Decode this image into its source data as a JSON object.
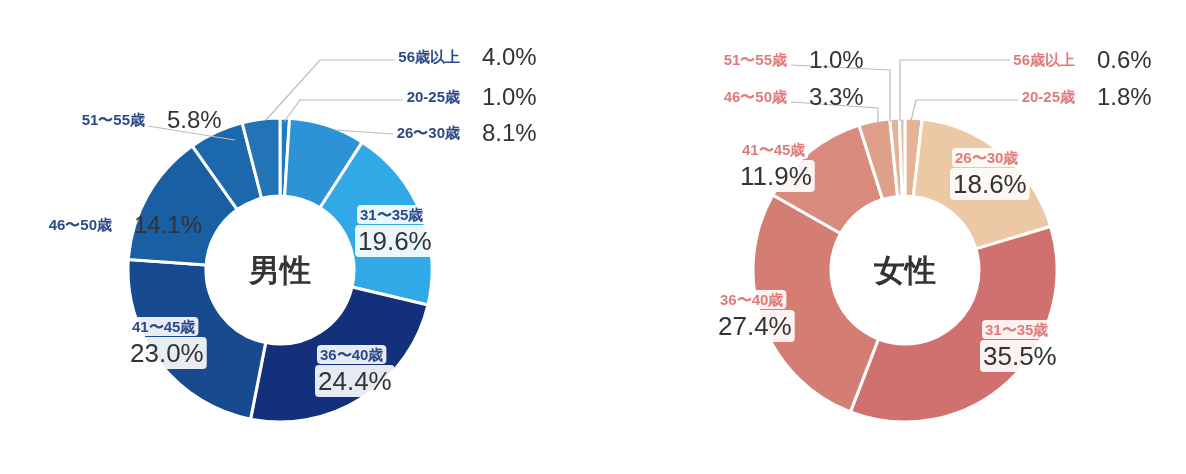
{
  "chart_data": [
    {
      "type": "donut",
      "title": "男性",
      "categories": [
        "20-25歳",
        "26〜30歳",
        "31〜35歳",
        "36〜40歳",
        "41〜45歳",
        "46〜50歳",
        "51〜55歳",
        "56歳以上"
      ],
      "values": [
        1.0,
        8.1,
        19.6,
        24.4,
        23.0,
        14.1,
        5.8,
        4.0
      ],
      "value_labels": [
        "1.0%",
        "8.1%",
        "19.6%",
        "24.4%",
        "23.0%",
        "14.1%",
        "5.8%",
        "4.0%"
      ],
      "colors": [
        "#1f7cc1",
        "#2b93d6",
        "#31a9e6",
        "#13307a",
        "#174a8f",
        "#1a5ea3",
        "#1b68ad",
        "#2274b6"
      ]
    },
    {
      "type": "donut",
      "title": "女性",
      "categories": [
        "20-25歳",
        "26〜30歳",
        "31〜35歳",
        "36〜40歳",
        "41〜45歳",
        "46〜50歳",
        "51〜55歳",
        "56歳以上"
      ],
      "values": [
        1.8,
        18.6,
        35.5,
        27.4,
        11.9,
        3.3,
        1.0,
        0.6
      ],
      "value_labels": [
        "1.8%",
        "18.6%",
        "35.5%",
        "27.4%",
        "11.9%",
        "3.3%",
        "1.0%",
        "0.6%"
      ],
      "colors": [
        "#e6b396",
        "#ecc8a5",
        "#d0706f",
        "#d47d73",
        "#d98c7d",
        "#dea08a",
        "#e4b29a",
        "#e8bc9f"
      ]
    }
  ]
}
